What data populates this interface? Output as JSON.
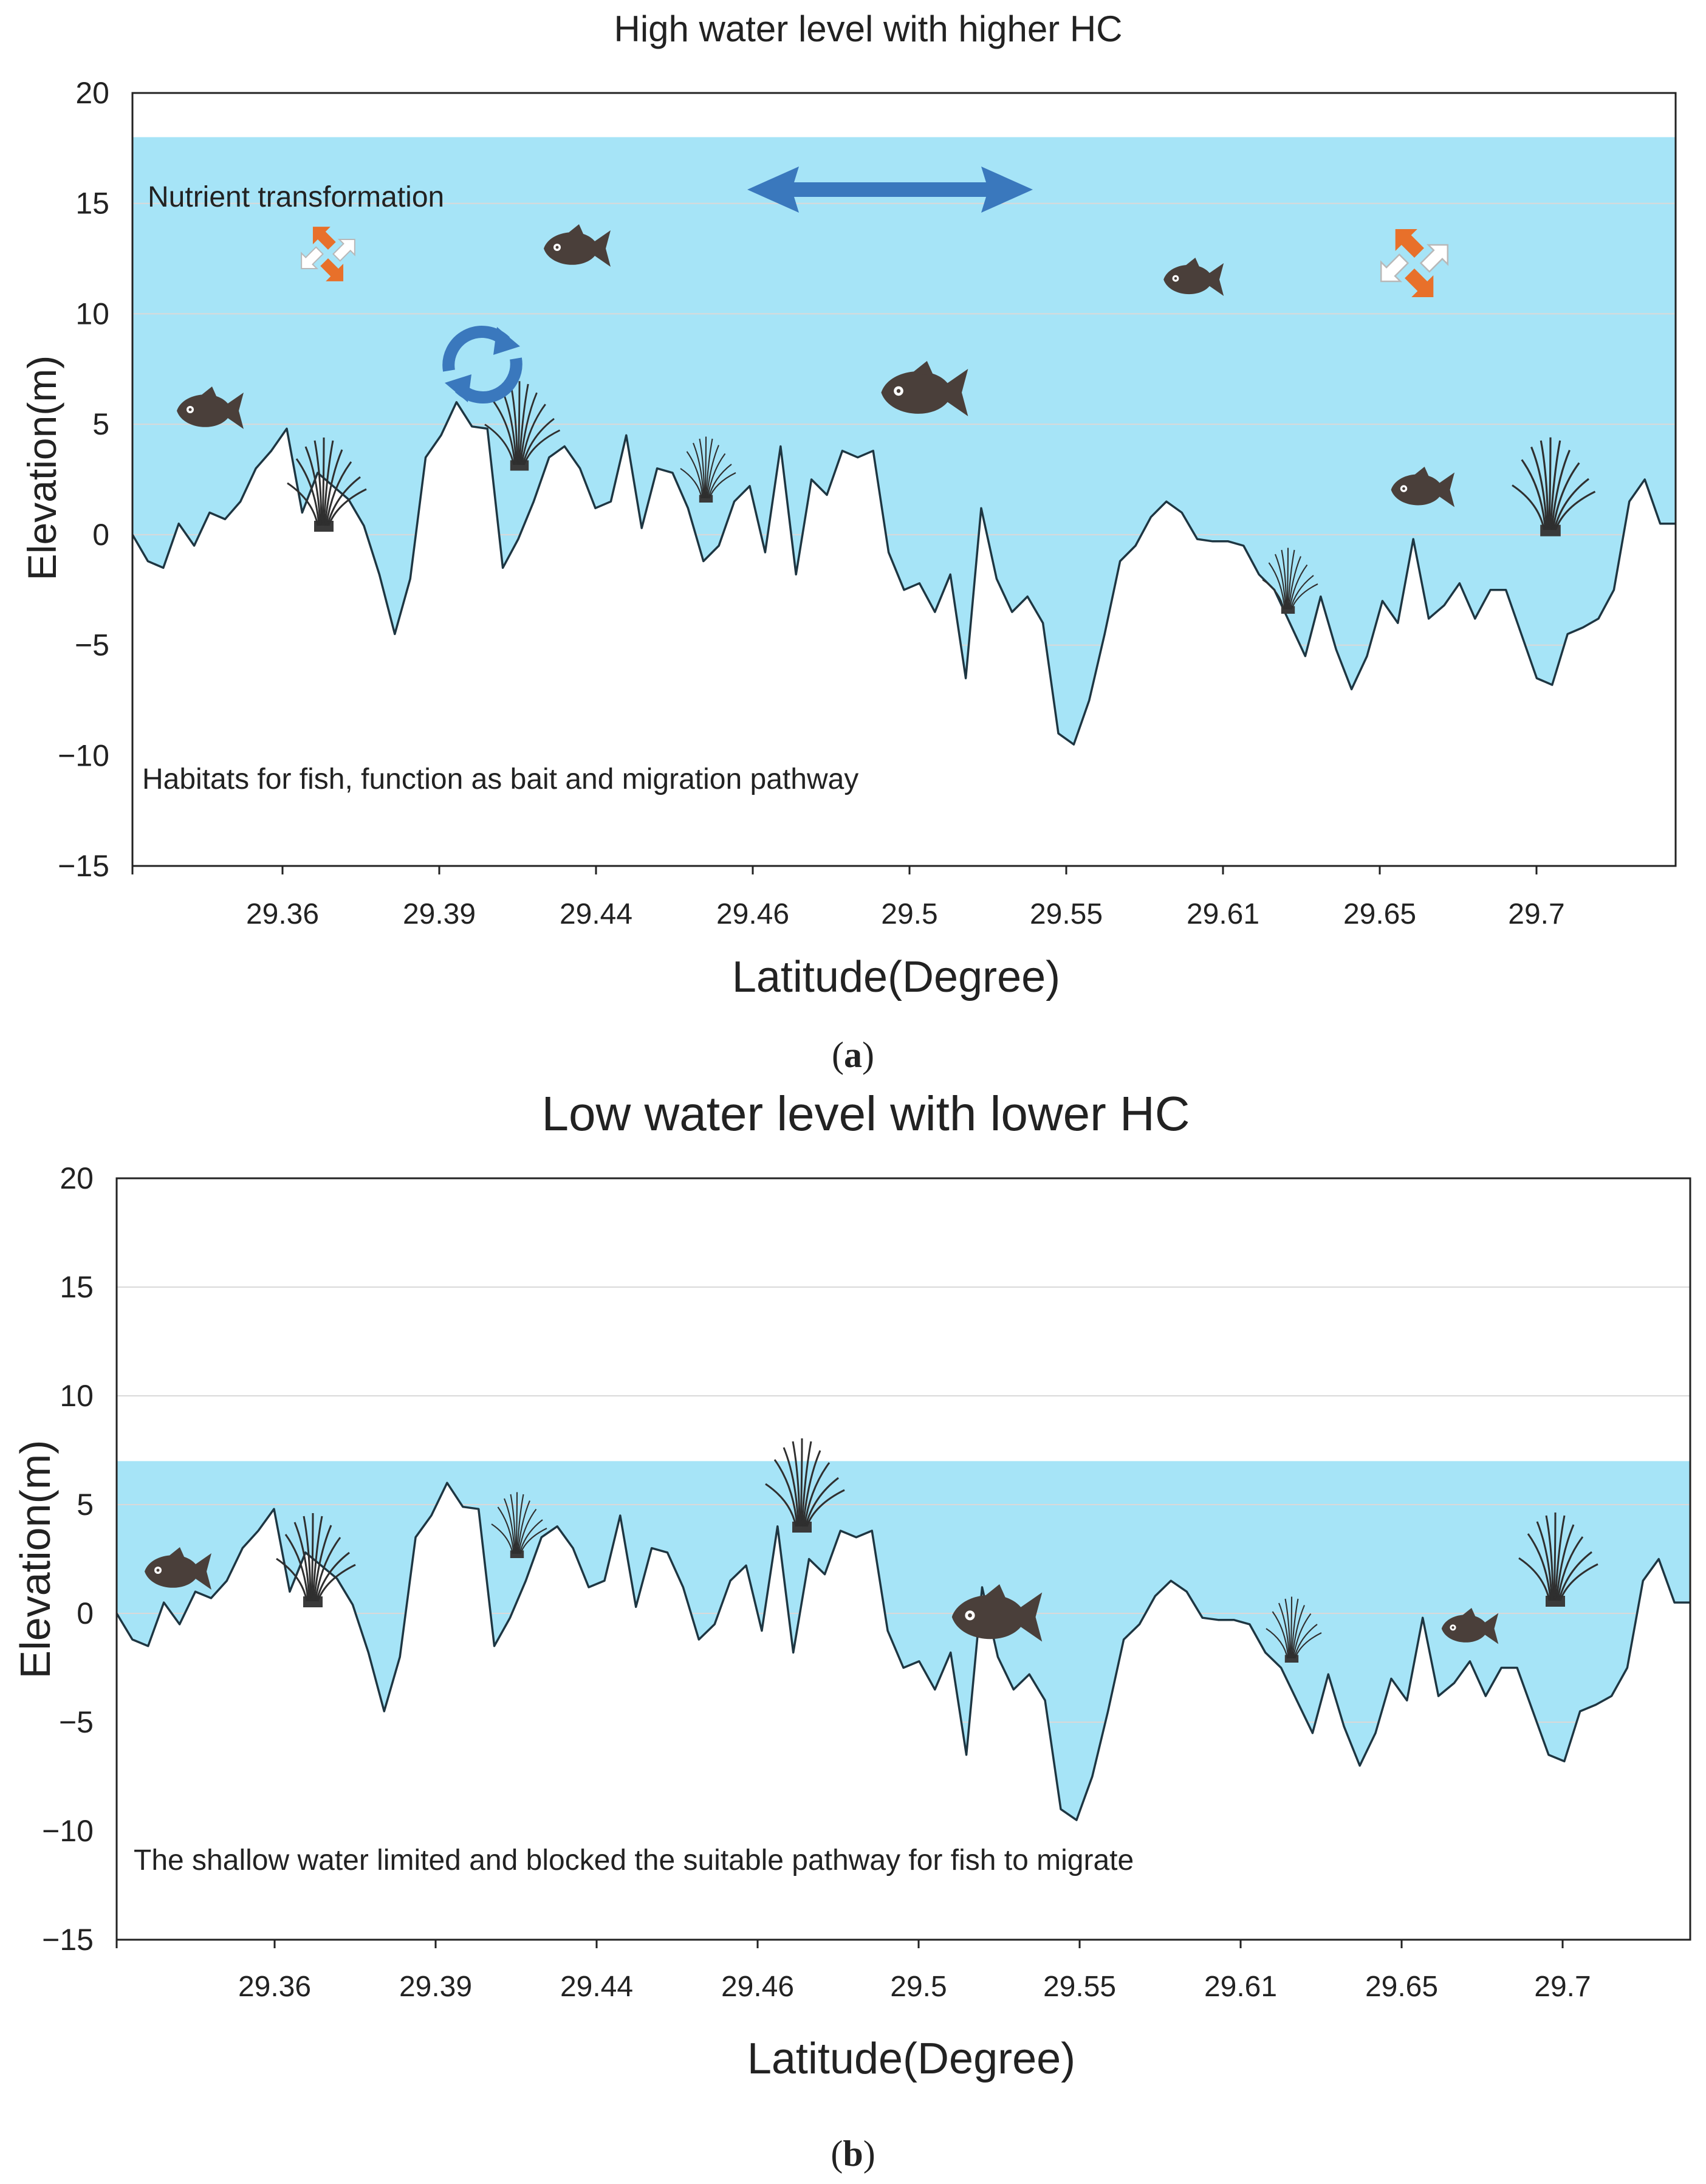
{
  "chart_data": [
    {
      "type": "area",
      "panel_label": "a",
      "title": "High water level with higher HC",
      "xlabel": "Latitude(Degree)",
      "ylabel": "Elevation(m)",
      "ylim": [
        -15,
        20
      ],
      "yticks": [
        20,
        15,
        10,
        5,
        0,
        -5,
        -10,
        -15
      ],
      "x_tick_labels": [
        "29.36",
        "29.39",
        "29.44",
        "29.46",
        "29.5",
        "29.55",
        "29.61",
        "29.65",
        "29.7"
      ],
      "water_level": 18,
      "annotations": {
        "top": "Nutrient  transformation",
        "bottom": "Habitats for fish, function as bait and migration pathway"
      },
      "colors": {
        "water": "#a6e4f7",
        "profile_line": "#1e3642",
        "fish": "#4a3f3a",
        "arrow": "#3a78bd",
        "nutrient": "#e8702a"
      },
      "icons": [
        "fish-icon",
        "aquatic-plant-icon",
        "double-arrow-icon",
        "cycle-arrows-icon",
        "nutrient-arrows-icon"
      ]
    },
    {
      "type": "area",
      "panel_label": "b",
      "title": "Low  water level with lower  HC",
      "xlabel": "Latitude(Degree)",
      "ylabel": "Elevation(m)",
      "ylim": [
        -15,
        20
      ],
      "yticks": [
        20,
        15,
        10,
        5,
        0,
        -5,
        -10,
        -15
      ],
      "x_tick_labels": [
        "29.36",
        "29.39",
        "29.44",
        "29.46",
        "29.5",
        "29.55",
        "29.61",
        "29.65",
        "29.7"
      ],
      "water_level": 7,
      "annotations": {
        "bottom": "The shallow water  limited and blocked the suitable pathway for fish to migrate"
      },
      "colors": {
        "water": "#a6e4f7",
        "profile_line": "#1e3642",
        "fish": "#4a3f3a"
      },
      "icons": [
        "fish-icon",
        "aquatic-plant-icon"
      ]
    }
  ],
  "profile": {
    "x_range": [
      0,
      100
    ],
    "x": [
      0,
      1,
      2,
      3,
      4,
      5,
      6,
      7,
      8,
      9,
      10,
      11,
      12,
      13,
      14,
      15,
      16,
      17,
      18,
      19,
      20,
      21,
      22,
      23,
      24,
      25,
      26,
      27,
      28,
      29,
      30,
      31,
      32,
      33,
      34,
      35,
      36,
      37,
      38,
      39,
      40,
      41,
      42,
      43,
      44,
      45,
      46,
      47,
      48,
      49,
      50,
      51,
      52,
      53,
      54,
      55,
      56,
      57,
      58,
      59,
      60,
      61,
      62,
      63,
      64,
      65,
      66,
      67,
      68,
      69,
      70,
      71,
      72,
      73,
      74,
      75,
      76,
      77,
      78,
      79,
      80,
      81,
      82,
      83,
      84,
      85,
      86,
      87,
      88,
      89,
      90,
      91,
      92,
      93,
      94,
      95,
      96,
      97,
      98,
      99,
      100
    ],
    "elevation": [
      0,
      -1.2,
      -1.5,
      0.5,
      -0.5,
      1,
      0.7,
      1.5,
      3,
      3.8,
      4.8,
      1,
      2.8,
      2.2,
      1.6,
      0.4,
      -1.8,
      -4.5,
      -2,
      3.5,
      4.5,
      6,
      4.9,
      4.8,
      -1.5,
      -0.2,
      1.5,
      3.5,
      4,
      3,
      1.2,
      1.5,
      4.5,
      0.3,
      3,
      2.8,
      1.2,
      -1.2,
      -0.5,
      1.5,
      2.2,
      -0.8,
      4,
      -1.8,
      2.5,
      1.8,
      3.8,
      3.5,
      3.8,
      -0.8,
      -2.5,
      -2.2,
      -3.5,
      -1.8,
      -6.5,
      1.2,
      -2,
      -3.5,
      -2.8,
      -4,
      -9,
      -9.5,
      -7.5,
      -4.5,
      -1.2,
      -0.5,
      0.8,
      1.5,
      1,
      -0.2,
      -0.3,
      -0.3,
      -0.5,
      -1.8,
      -2.5,
      -4,
      -5.5,
      -2.8,
      -5.2,
      -7,
      -5.5,
      -3,
      -4,
      -0.2,
      -3.8,
      -3.2,
      -2.2,
      -3.8,
      -2.5,
      -2.5,
      -4.5,
      -6.5,
      -6.8,
      -4.5,
      -4.2,
      -3.8,
      -2.5,
      1.5,
      2.5,
      0.5,
      0.5
    ]
  }
}
